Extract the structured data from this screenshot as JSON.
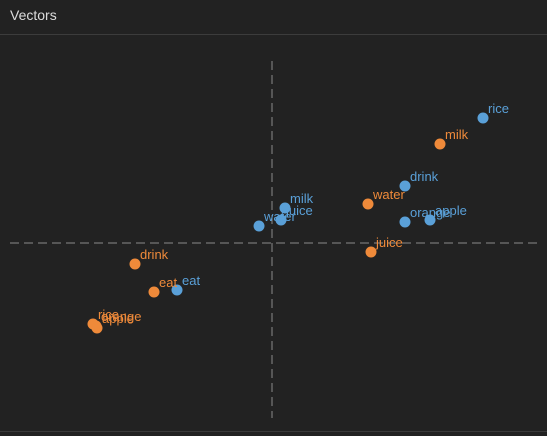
{
  "window": {
    "title": "Vectors"
  },
  "colors": {
    "blue": "#5aa0d8",
    "orange": "#ef8a3a",
    "axis": "#8a8a8a"
  },
  "chart_data": {
    "type": "scatter",
    "title": "",
    "xlabel": "",
    "ylabel": "",
    "xlim": [
      -2.5,
      2.5
    ],
    "ylim": [
      -1.8,
      1.8
    ],
    "grid": false,
    "axes_style": "dashed-center",
    "series": [
      {
        "color_key": "blue",
        "points": [
          {
            "label": "rice",
            "x": 2.11,
            "y": 1.25
          },
          {
            "label": "drink",
            "x": 1.33,
            "y": 0.57
          },
          {
            "label": "apple",
            "x": 1.58,
            "y": 0.23
          },
          {
            "label": "orange",
            "x": 1.33,
            "y": 0.21
          },
          {
            "label": "milk",
            "x": 0.13,
            "y": 0.35
          },
          {
            "label": "juice",
            "x": 0.09,
            "y": 0.23
          },
          {
            "label": "water",
            "x": -0.13,
            "y": 0.17
          },
          {
            "label": "eat",
            "x": -0.95,
            "y": -0.47
          }
        ]
      },
      {
        "color_key": "orange",
        "points": [
          {
            "label": "milk",
            "x": 1.68,
            "y": 0.99
          },
          {
            "label": "water",
            "x": 0.96,
            "y": 0.39
          },
          {
            "label": "juice",
            "x": 0.99,
            "y": -0.09
          },
          {
            "label": "drink",
            "x": -1.37,
            "y": -0.21
          },
          {
            "label": "eat",
            "x": -1.18,
            "y": -0.49
          },
          {
            "label": "rice",
            "x": -1.79,
            "y": -0.81
          },
          {
            "label": "orange",
            "x": -1.76,
            "y": -0.83
          },
          {
            "label": "apple",
            "x": -1.75,
            "y": -0.85
          }
        ]
      }
    ]
  }
}
